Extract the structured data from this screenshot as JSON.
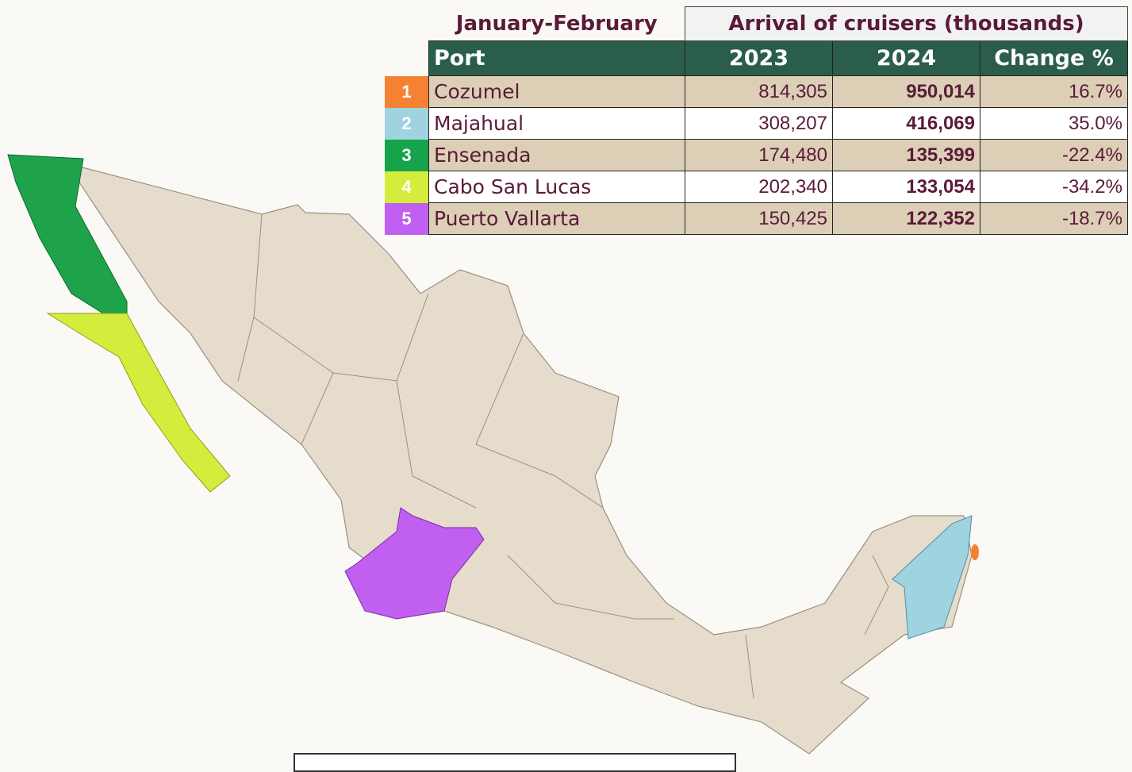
{
  "table": {
    "period": "January-February",
    "group_header": "Arrival of cruisers (thousands)",
    "columns": [
      "Port",
      "2023",
      "2024",
      "Change %"
    ],
    "rows": [
      {
        "rank": "1",
        "color": "#f58233",
        "cells": [
          "Cozumel",
          "814,305",
          "950,014",
          "16.7%"
        ]
      },
      {
        "rank": "2",
        "color": "#9fd3e0",
        "cells": [
          "Majahual",
          "308,207",
          "416,069",
          "35.0%"
        ]
      },
      {
        "rank": "3",
        "color": "#16a34a",
        "cells": [
          "Ensenada",
          "174,480",
          "135,399",
          "-22.4%"
        ]
      },
      {
        "rank": "4",
        "color": "#d4ec3c",
        "cells": [
          "Cabo San Lucas",
          "202,340",
          "133,054",
          "-34.2%"
        ]
      },
      {
        "rank": "5",
        "color": "#c05ff0",
        "cells": [
          "Puerto Vallarta",
          "150,425",
          "122,352",
          "-18.7%"
        ]
      }
    ]
  }
}
